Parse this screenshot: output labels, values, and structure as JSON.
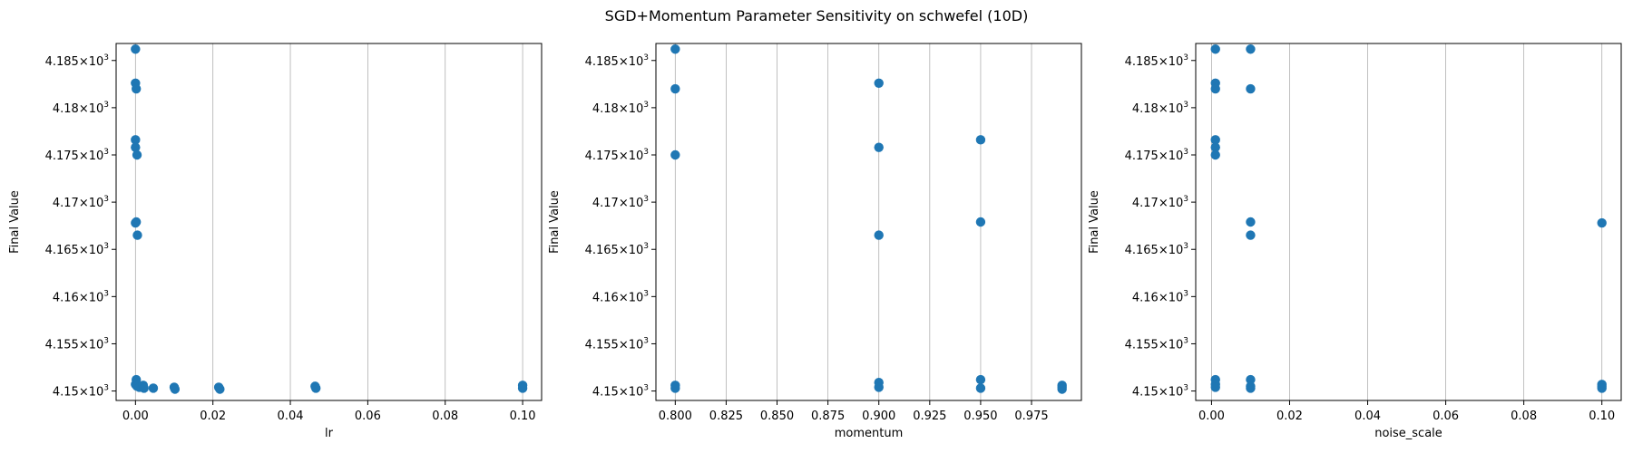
{
  "figure": {
    "suptitle": "SGD+Momentum Parameter Sensitivity on schwefel (10D)",
    "marker_color": "#1f77b4",
    "grid_color": "#b0b0b0"
  },
  "chart_data": [
    {
      "type": "scatter",
      "xlabel": "lr",
      "ylabel": "Final Value",
      "xlim": [
        -0.005,
        0.1049
      ],
      "ylim": [
        4149.0,
        4186.8
      ],
      "xticks": [
        0.0,
        0.02,
        0.04,
        0.06,
        0.08,
        0.1
      ],
      "xtick_labels": [
        "0.00",
        "0.02",
        "0.04",
        "0.06",
        "0.08",
        "0.10"
      ],
      "yticks": [
        4150,
        4155,
        4160,
        4165,
        4170,
        4175,
        4180,
        4185
      ],
      "ytick_labels": [
        "4.15",
        "4.155",
        "4.16",
        "4.165",
        "4.17",
        "4.175",
        "4.18",
        "4.185"
      ],
      "ytick_exponent": "3",
      "grid": "x",
      "points": [
        {
          "x": 0.0,
          "y": 4186.2
        },
        {
          "x": 0.0,
          "y": 4182.6
        },
        {
          "x": 0.0002,
          "y": 4182.0
        },
        {
          "x": 0.0,
          "y": 4176.6
        },
        {
          "x": 0.0,
          "y": 4175.8
        },
        {
          "x": 0.0004,
          "y": 4175.0
        },
        {
          "x": 0.0002,
          "y": 4167.9
        },
        {
          "x": 0.0,
          "y": 4167.8
        },
        {
          "x": 0.0005,
          "y": 4166.5
        },
        {
          "x": 0.0002,
          "y": 4151.2
        },
        {
          "x": 0.0,
          "y": 4150.7
        },
        {
          "x": 0.0004,
          "y": 4150.5
        },
        {
          "x": 0.001,
          "y": 4150.4
        },
        {
          "x": 0.002,
          "y": 4150.6
        },
        {
          "x": 0.0022,
          "y": 4150.3
        },
        {
          "x": 0.0046,
          "y": 4150.3
        },
        {
          "x": 0.01,
          "y": 4150.4
        },
        {
          "x": 0.0102,
          "y": 4150.2
        },
        {
          "x": 0.0215,
          "y": 4150.4
        },
        {
          "x": 0.0218,
          "y": 4150.2
        },
        {
          "x": 0.0464,
          "y": 4150.5
        },
        {
          "x": 0.0466,
          "y": 4150.3
        },
        {
          "x": 0.1,
          "y": 4150.6
        },
        {
          "x": 0.1,
          "y": 4150.3
        }
      ]
    },
    {
      "type": "scatter",
      "xlabel": "momentum",
      "ylabel": "Final Value",
      "xlim": [
        0.7905,
        0.9995
      ],
      "ylim": [
        4149.0,
        4186.8
      ],
      "xticks": [
        0.8,
        0.825,
        0.85,
        0.875,
        0.9,
        0.925,
        0.95,
        0.975
      ],
      "xtick_labels": [
        "0.800",
        "0.825",
        "0.850",
        "0.875",
        "0.900",
        "0.925",
        "0.950",
        "0.975"
      ],
      "yticks": [
        4150,
        4155,
        4160,
        4165,
        4170,
        4175,
        4180,
        4185
      ],
      "ytick_labels": [
        "4.15",
        "4.155",
        "4.16",
        "4.165",
        "4.17",
        "4.175",
        "4.18",
        "4.185"
      ],
      "ytick_exponent": "3",
      "grid": "x",
      "points": [
        {
          "x": 0.8,
          "y": 4186.2
        },
        {
          "x": 0.8,
          "y": 4182.0
        },
        {
          "x": 0.8,
          "y": 4175.0
        },
        {
          "x": 0.8,
          "y": 4150.6
        },
        {
          "x": 0.8,
          "y": 4150.3
        },
        {
          "x": 0.9,
          "y": 4182.6
        },
        {
          "x": 0.9,
          "y": 4175.8
        },
        {
          "x": 0.9,
          "y": 4166.5
        },
        {
          "x": 0.9,
          "y": 4150.9
        },
        {
          "x": 0.9,
          "y": 4150.4
        },
        {
          "x": 0.95,
          "y": 4176.6
        },
        {
          "x": 0.95,
          "y": 4167.9
        },
        {
          "x": 0.95,
          "y": 4151.2
        },
        {
          "x": 0.95,
          "y": 4150.3
        },
        {
          "x": 0.99,
          "y": 4150.6
        },
        {
          "x": 0.99,
          "y": 4150.4
        },
        {
          "x": 0.99,
          "y": 4150.2
        }
      ]
    },
    {
      "type": "scatter",
      "xlabel": "noise_scale",
      "ylabel": "Final Value",
      "xlim": [
        -0.00405,
        0.10495
      ],
      "ylim": [
        4149.0,
        4186.8
      ],
      "xticks": [
        0.0,
        0.02,
        0.04,
        0.06,
        0.08,
        0.1
      ],
      "xtick_labels": [
        "0.00",
        "0.02",
        "0.04",
        "0.06",
        "0.08",
        "0.10"
      ],
      "yticks": [
        4150,
        4155,
        4160,
        4165,
        4170,
        4175,
        4180,
        4185
      ],
      "ytick_labels": [
        "4.15",
        "4.155",
        "4.16",
        "4.165",
        "4.17",
        "4.175",
        "4.18",
        "4.185"
      ],
      "ytick_exponent": "3",
      "grid": "x",
      "points": [
        {
          "x": 0.001,
          "y": 4186.2
        },
        {
          "x": 0.001,
          "y": 4182.6
        },
        {
          "x": 0.001,
          "y": 4182.0
        },
        {
          "x": 0.001,
          "y": 4176.6
        },
        {
          "x": 0.001,
          "y": 4175.8
        },
        {
          "x": 0.001,
          "y": 4175.0
        },
        {
          "x": 0.001,
          "y": 4151.2
        },
        {
          "x": 0.001,
          "y": 4150.7
        },
        {
          "x": 0.001,
          "y": 4150.4
        },
        {
          "x": 0.01,
          "y": 4186.2
        },
        {
          "x": 0.01,
          "y": 4182.0
        },
        {
          "x": 0.01,
          "y": 4167.9
        },
        {
          "x": 0.01,
          "y": 4166.5
        },
        {
          "x": 0.01,
          "y": 4151.2
        },
        {
          "x": 0.01,
          "y": 4150.5
        },
        {
          "x": 0.01,
          "y": 4150.3
        },
        {
          "x": 0.1,
          "y": 4167.8
        },
        {
          "x": 0.1,
          "y": 4150.7
        },
        {
          "x": 0.1,
          "y": 4150.5
        },
        {
          "x": 0.1,
          "y": 4150.3
        }
      ]
    }
  ]
}
